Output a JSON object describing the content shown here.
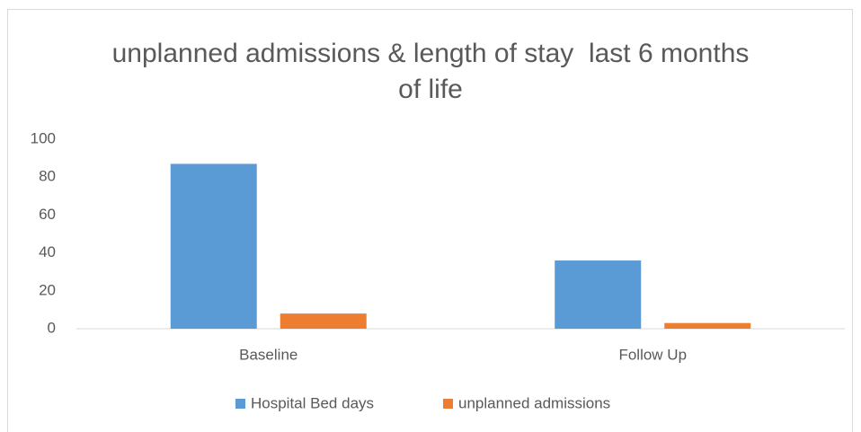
{
  "chart_data": {
    "type": "bar",
    "title": "unplanned admissions & length of stay  last 6 months of life",
    "categories": [
      "Baseline",
      "Follow Up"
    ],
    "series": [
      {
        "name": "Hospital Bed days",
        "color": "#5b9bd5",
        "values": [
          87,
          36
        ]
      },
      {
        "name": "unplanned admissions",
        "color": "#ed7d31",
        "values": [
          8,
          3
        ]
      }
    ],
    "ylim": [
      0,
      100
    ],
    "yticks": [
      0,
      20,
      40,
      60,
      80,
      100
    ],
    "grid": false,
    "legend": "bottom"
  }
}
